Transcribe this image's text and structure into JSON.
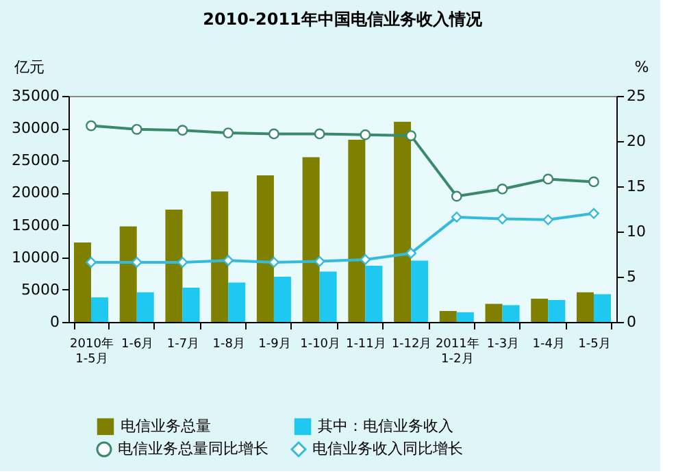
{
  "chart_data": {
    "type": "bar",
    "title": "2010-2011年中国电信业务收入情况",
    "ylabel": "亿元",
    "y2label": "%",
    "categories": [
      "2010年1-5月",
      "1-6月",
      "1-7月",
      "1-8月",
      "1-9月",
      "1-10月",
      "1-11月",
      "1-12月",
      "2011年1-2月",
      "1-3月",
      "1-4月",
      "1-5月"
    ],
    "series": [
      {
        "name": "电信业务总量",
        "color": "#808000",
        "values": [
          12300,
          14800,
          17400,
          20200,
          22700,
          25500,
          28200,
          31000,
          1700,
          2800,
          3600,
          4600
        ]
      },
      {
        "name": "其中：电信业务收入",
        "color": "#1ec8f0",
        "values": [
          3800,
          4600,
          5300,
          6100,
          7000,
          7800,
          8700,
          9500,
          1500,
          2600,
          3400,
          4300
        ]
      },
      {
        "name": "电信业务总量同比增长",
        "type": "line",
        "axis": "y2",
        "marker": "circle",
        "color": "#3a8a6a",
        "values": [
          21.7,
          21.3,
          21.2,
          20.9,
          20.8,
          20.8,
          20.7,
          20.6,
          13.9,
          14.7,
          15.8,
          15.5
        ]
      },
      {
        "name": "电信业务收入同比增长",
        "type": "line",
        "axis": "y2",
        "marker": "diamond",
        "color": "#33bbdd",
        "values": [
          6.6,
          6.6,
          6.6,
          6.8,
          6.6,
          6.7,
          6.9,
          7.6,
          11.6,
          11.4,
          11.3,
          12.0
        ]
      }
    ],
    "ylim": [
      0,
      35000
    ],
    "yticks": [
      0,
      5000,
      10000,
      15000,
      20000,
      25000,
      30000,
      35000
    ],
    "y2lim": [
      0,
      25
    ],
    "y2ticks": [
      0,
      5,
      10,
      15,
      20,
      25
    ],
    "grid": false,
    "legend": "bottom"
  }
}
